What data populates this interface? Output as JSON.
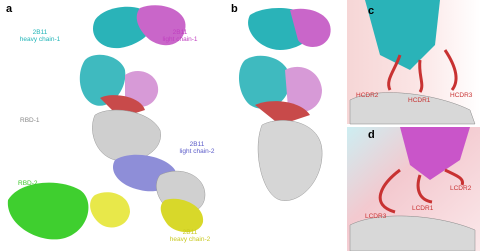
{
  "panels": {
    "a": {
      "label": "a",
      "annotations": [
        {
          "lines": [
            "2B11",
            "heavy chain-1"
          ]
        },
        {
          "lines": [
            "2B11",
            "light chain-1"
          ]
        },
        {
          "lines": [
            "RBD-1"
          ]
        },
        {
          "lines": [
            "2B11",
            "light chain-2"
          ]
        },
        {
          "lines": [
            "RBD-2"
          ]
        },
        {
          "lines": [
            "2B11",
            "heavy chain-2"
          ]
        }
      ]
    },
    "b": {
      "label": "b"
    },
    "c": {
      "label": "c",
      "annotations": [
        "HCDR2",
        "HCDR1",
        "HCDR3"
      ]
    },
    "d": {
      "label": "d",
      "annotations": [
        "LCDR3",
        "LCDR1",
        "LCDR2"
      ]
    }
  }
}
